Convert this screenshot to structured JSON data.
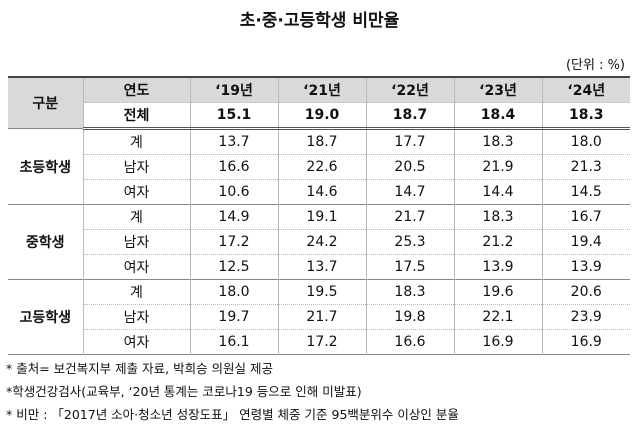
{
  "title": "초·중·고등학생 비만율",
  "unit": "(단위 : %)",
  "table": {
    "header": {
      "group": "구분",
      "year": "연도",
      "years": [
        "‘19년",
        "‘21년",
        "‘22년",
        "‘23년",
        "‘24년"
      ]
    },
    "total": {
      "label": "전체",
      "values": [
        "15.1",
        "19.0",
        "18.7",
        "18.4",
        "18.3"
      ]
    },
    "groups": [
      {
        "name": "초등학생",
        "rows": [
          {
            "label": "계",
            "values": [
              "13.7",
              "18.7",
              "17.7",
              "18.3",
              "18.0"
            ]
          },
          {
            "label": "남자",
            "values": [
              "16.6",
              "22.6",
              "20.5",
              "21.9",
              "21.3"
            ]
          },
          {
            "label": "여자",
            "values": [
              "10.6",
              "14.6",
              "14.7",
              "14.4",
              "14.5"
            ]
          }
        ]
      },
      {
        "name": "중학생",
        "rows": [
          {
            "label": "계",
            "values": [
              "14.9",
              "19.1",
              "21.7",
              "18.3",
              "16.7"
            ]
          },
          {
            "label": "남자",
            "values": [
              "17.2",
              "24.2",
              "25.3",
              "21.2",
              "19.4"
            ]
          },
          {
            "label": "여자",
            "values": [
              "12.5",
              "13.7",
              "17.5",
              "13.9",
              "13.9"
            ]
          }
        ]
      },
      {
        "name": "고등학생",
        "rows": [
          {
            "label": "계",
            "values": [
              "18.0",
              "19.5",
              "18.3",
              "19.6",
              "20.6"
            ]
          },
          {
            "label": "남자",
            "values": [
              "19.7",
              "21.7",
              "19.8",
              "22.1",
              "23.9"
            ]
          },
          {
            "label": "여자",
            "values": [
              "16.1",
              "17.2",
              "16.6",
              "16.9",
              "16.9"
            ]
          }
        ]
      }
    ]
  },
  "notes": [
    "* 출처= 보건복지부 제출 자료, 박희승 의원실 제공",
    "*학생건강검사(교육부, ‘20년 통계는 코로나19 등으로 인해 미발표)",
    "* 비만 : 「2017년 소아·청소년 성장도표」 연령별 체중 기준 95백분위수 이상인 분율"
  ]
}
